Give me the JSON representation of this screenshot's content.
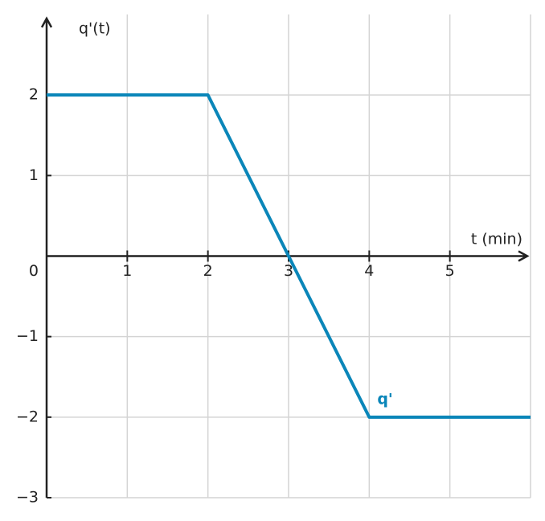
{
  "chart_data": {
    "type": "line",
    "x_label": "t (min)",
    "y_label": "q'(t)",
    "x": [
      0,
      2,
      4,
      6
    ],
    "series": [
      {
        "name": "q'",
        "color": "#0a86b9",
        "values": [
          2,
          2,
          -2,
          -2
        ]
      }
    ],
    "xlim": [
      0,
      6
    ],
    "ylim": [
      -3,
      3
    ],
    "xticks": [
      1,
      2,
      3,
      4,
      5
    ],
    "yticks": [
      {
        "value": -3,
        "label": "−3"
      },
      {
        "value": -2,
        "label": "−2"
      },
      {
        "value": -1,
        "label": "−1"
      },
      0,
      1,
      2
    ],
    "grid": true
  }
}
